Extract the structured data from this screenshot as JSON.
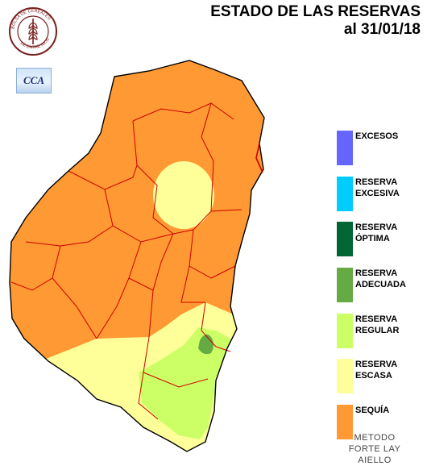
{
  "header": {
    "title_line1": "ESTADO DE LAS RESERVAS",
    "title_line2": "al 31/01/18"
  },
  "seal": {
    "icon": "wheat-seal-icon",
    "text": "BOLSA DE CEREALES DE ENTRE RIOS"
  },
  "cca_logo": {
    "text": "CCA"
  },
  "colors": {
    "sequia": "#ff9933",
    "escasa": "#ffff99",
    "regular": "#ccff66",
    "adecuada": "#66aa44",
    "optima": "#006633",
    "excesiva": "#00ccff",
    "excesos": "#6666ff",
    "border": "#cc0000",
    "outline": "#000000"
  },
  "legend": [
    {
      "label": "EXCESOS",
      "color": "#6666ff"
    },
    {
      "label": "RESERVA\nEXCESIVA",
      "color": "#00ccff"
    },
    {
      "label": "RESERVA\nÓPTIMA",
      "color": "#006633"
    },
    {
      "label": "RESERVA\nADECUADA",
      "color": "#66aa44"
    },
    {
      "label": "RESERVA\nREGULAR",
      "color": "#ccff66"
    },
    {
      "label": "RESERVA\nESCASA",
      "color": "#ffff99"
    },
    {
      "label": "SEQUÍA",
      "color": "#ff9933"
    }
  ],
  "method_note": "METODO\nFORTE LAY\nAIELLO"
}
